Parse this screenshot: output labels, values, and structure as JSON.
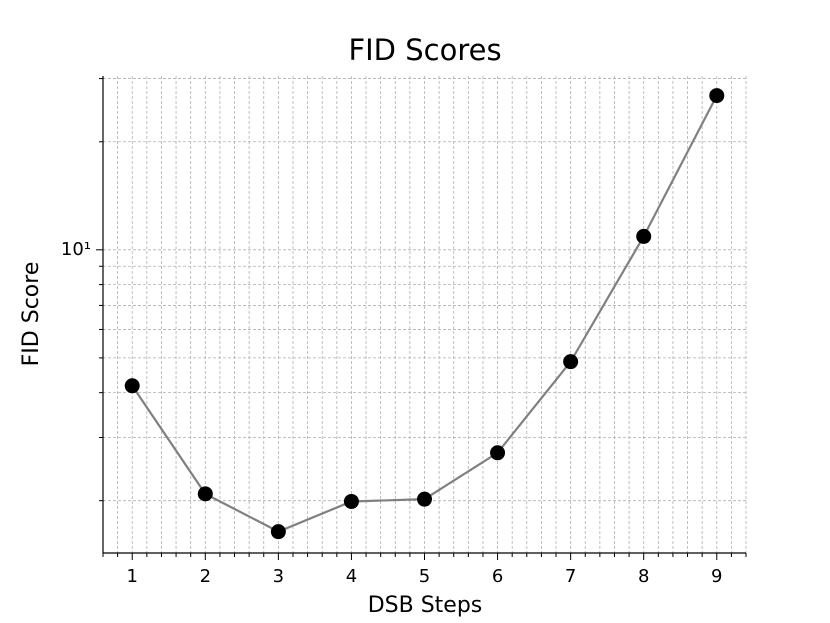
{
  "chart_data": {
    "type": "line",
    "title": "FID Scores",
    "x_label": "DSB Steps",
    "y_label": "FID Score",
    "x": [
      1,
      2,
      3,
      4,
      5,
      6,
      7,
      8,
      9
    ],
    "series": [
      {
        "color": "#808080",
        "marker_color": "#000000",
        "values": [
          4.18,
          2.09,
          1.64,
          1.99,
          2.02,
          2.72,
          4.88,
          10.9,
          26.9
        ]
      }
    ],
    "xlim": [
      0.6,
      9.4
    ],
    "xticks": [
      1,
      2,
      3,
      4,
      5,
      6,
      7,
      8,
      9
    ],
    "xminorticks": [
      0.6,
      0.8,
      1.2,
      1.4,
      1.6,
      1.8,
      2.2,
      2.4,
      2.6,
      2.8,
      3.2,
      3.4,
      3.6,
      3.8,
      4.2,
      4.4,
      4.6,
      4.8,
      5.2,
      5.4,
      5.6,
      5.8,
      6.2,
      6.4,
      6.6,
      6.8,
      7.2,
      7.4,
      7.6,
      7.8,
      8.2,
      8.4,
      8.6,
      8.8,
      9.2,
      9.4
    ],
    "ylim": [
      1.43,
      30.5
    ],
    "yscale": "log",
    "yticks": [
      {
        "value": 10,
        "label": "10¹"
      }
    ],
    "yminorticks": [
      2,
      3,
      4,
      5,
      6,
      7,
      8,
      9,
      20,
      30
    ],
    "grid": true
  }
}
